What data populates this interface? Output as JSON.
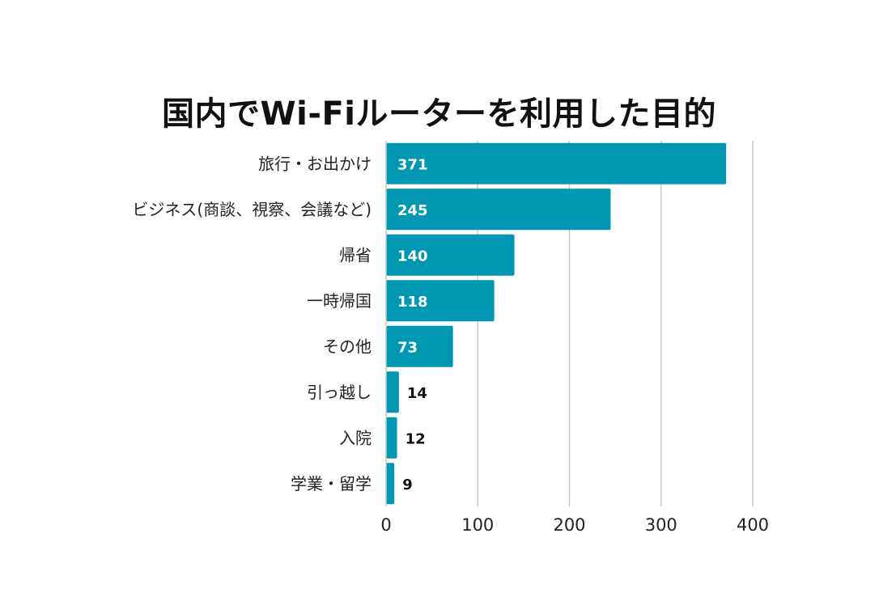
{
  "chart_data": {
    "type": "bar",
    "orientation": "horizontal",
    "title": "国内でWi-Fiルーターを利用した目的",
    "categories": [
      "旅行・お出かけ",
      "ビジネス(商談、視察、会議など)",
      "帰省",
      "一時帰国",
      "その他",
      "引っ越し",
      "入院",
      "学業・留学"
    ],
    "values": [
      371,
      245,
      140,
      118,
      73,
      14,
      12,
      9
    ],
    "xlim": [
      0,
      400
    ],
    "xticks": [
      0,
      100,
      200,
      300,
      400
    ],
    "grid": "vertical",
    "legend": "none",
    "bar_color": "#0097b2"
  }
}
